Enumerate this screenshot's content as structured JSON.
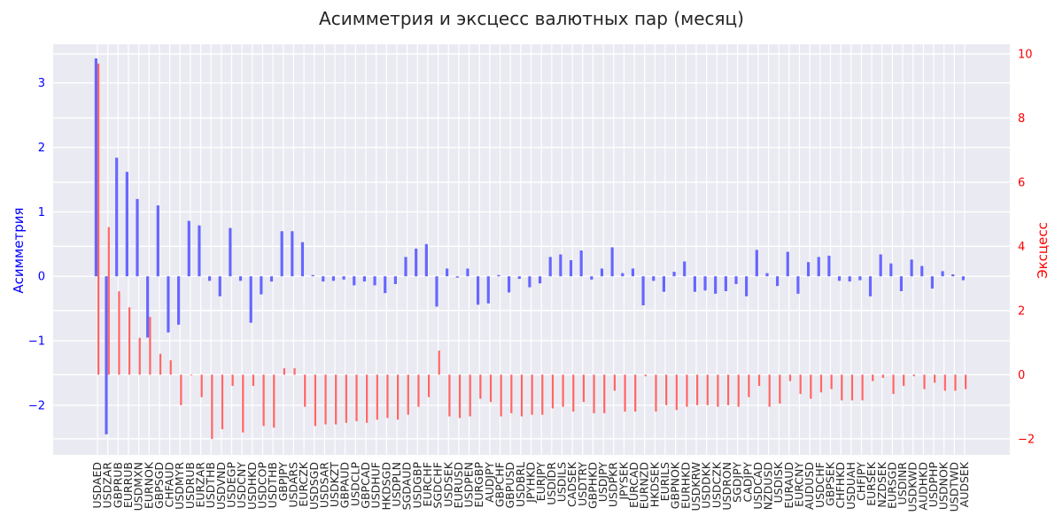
{
  "chart_data": {
    "type": "bar",
    "title": "Асимметрия и эксцесс валютных пар (месяц)",
    "ylabel": "Асимметрия",
    "y2label": "Эксцесс",
    "ylim": [
      -2.77,
      3.6
    ],
    "y2lim": [
      -2.5,
      10.3
    ],
    "yticks": [
      -2,
      -1,
      0,
      1,
      2,
      3
    ],
    "yticks_labels": [
      "−2",
      "−1",
      "0",
      "1",
      "2",
      "3"
    ],
    "y2ticks": [
      -2,
      0,
      2,
      4,
      6,
      8,
      10
    ],
    "y2ticks_labels": [
      "−2",
      "0",
      "2",
      "4",
      "6",
      "8",
      "10"
    ],
    "grid": true,
    "colors": {
      "skew": "#6666ff",
      "kurt": "#ff6666",
      "axis_left": "#0000ff",
      "axis_right": "#ff0000",
      "plot_bg": "#eaeaf2",
      "grid": "#ffffff"
    },
    "categories": [
      "USDAED",
      "USDZAR",
      "GBPRUB",
      "EURRUB",
      "USDMXN",
      "EURNOK",
      "GBPSGD",
      "CHFAUD",
      "USDMYR",
      "USDRUB",
      "EURZAR",
      "USDTHB",
      "USDVND",
      "USDEGP",
      "USDCNY",
      "USDHKD",
      "USDCOP",
      "USDTHB",
      "GBPJPY",
      "USDARS",
      "EURCZK",
      "USDSGD",
      "USDSAR",
      "USDKZT",
      "GBPAUD",
      "USDCLP",
      "GBPCAD",
      "USDHUF",
      "HKDSGD",
      "USDPLN",
      "SGDAUD",
      "USDGBP",
      "EURCHF",
      "SGDCHF",
      "USDSEK",
      "EURUSD",
      "USDPEN",
      "EURGBP",
      "AUDJPY",
      "GBPCHF",
      "GBPUSD",
      "USDBRL",
      "JPYHKD",
      "EURJPY",
      "USDIDR",
      "USDILS",
      "CADSEK",
      "USDTRY",
      "GBPHKD",
      "USDJPY",
      "USDPKR",
      "JPYSEK",
      "EURCAD",
      "EURNZD",
      "HKDSEK",
      "EURILS",
      "GBPNOK",
      "EURHKD",
      "USDKRW",
      "USDDKK",
      "USDCZK",
      "USDRON",
      "SGDJPY",
      "CADJPY",
      "USDCAD",
      "NZDUSD",
      "USDISK",
      "EURAUD",
      "EURCNY",
      "AUDUSD",
      "USDCHF",
      "GBPSEK",
      "CHFHKD",
      "USDUAH",
      "CHFJPY",
      "EURSEK",
      "NZDSEK",
      "EURSGD",
      "USDINR",
      "USDKWD",
      "AUDHKD",
      "USDPHP",
      "USDNOK",
      "USDTWD",
      "AUDSEK"
    ],
    "series": [
      {
        "name": "Асимметрия",
        "axis": "left",
        "values": [
          3.38,
          -2.45,
          1.84,
          1.62,
          1.2,
          -0.95,
          1.1,
          -0.87,
          -0.75,
          0.86,
          0.79,
          -0.07,
          -0.31,
          0.75,
          -0.07,
          -0.72,
          -0.28,
          -0.08,
          0.7,
          0.7,
          0.53,
          0.02,
          -0.08,
          -0.07,
          -0.05,
          -0.14,
          -0.08,
          -0.14,
          -0.26,
          -0.12,
          0.3,
          0.43,
          0.5,
          -0.47,
          0.12,
          -0.02,
          0.12,
          -0.44,
          -0.42,
          0.02,
          -0.25,
          -0.04,
          -0.17,
          -0.11,
          0.3,
          0.34,
          0.25,
          0.4,
          -0.05,
          0.12,
          0.45,
          0.05,
          0.12,
          -0.45,
          -0.07,
          -0.24,
          0.07,
          0.23,
          -0.24,
          -0.22,
          -0.27,
          -0.23,
          -0.12,
          -0.31,
          0.41,
          0.05,
          -0.15,
          0.38,
          -0.27,
          0.22,
          0.3,
          0.32,
          -0.07,
          -0.08,
          -0.06,
          -0.31,
          0.34,
          0.2,
          -0.23,
          0.26,
          0.16,
          -0.19,
          0.08,
          0.03,
          -0.06
        ]
      },
      {
        "name": "Эксцесс",
        "axis": "right",
        "values": [
          9.7,
          4.6,
          2.6,
          2.1,
          1.15,
          1.8,
          0.65,
          0.45,
          -0.95,
          -0.02,
          -0.7,
          -2.0,
          -1.7,
          -0.35,
          -1.8,
          -0.35,
          -1.6,
          -1.65,
          0.2,
          0.2,
          -1.0,
          -1.6,
          -1.55,
          -1.55,
          -1.5,
          -1.45,
          -1.5,
          -1.4,
          -1.35,
          -1.4,
          -1.25,
          -1.0,
          -0.7,
          0.75,
          -1.3,
          -1.35,
          -1.3,
          -0.75,
          -0.85,
          -1.3,
          -1.2,
          -1.3,
          -1.25,
          -1.25,
          -1.05,
          -1.0,
          -1.15,
          -0.85,
          -1.2,
          -1.2,
          -0.5,
          -1.15,
          -1.15,
          -0.05,
          -1.15,
          -0.95,
          -1.1,
          -1.0,
          -0.95,
          -0.95,
          -1.0,
          -0.95,
          -1.0,
          -0.7,
          -0.35,
          -1.0,
          -0.9,
          -0.2,
          -0.6,
          -0.75,
          -0.55,
          -0.45,
          -0.8,
          -0.8,
          -0.8,
          -0.2,
          -0.1,
          -0.6,
          -0.35,
          -0.05,
          -0.45,
          -0.25,
          -0.5,
          -0.5,
          -0.45
        ]
      }
    ]
  }
}
